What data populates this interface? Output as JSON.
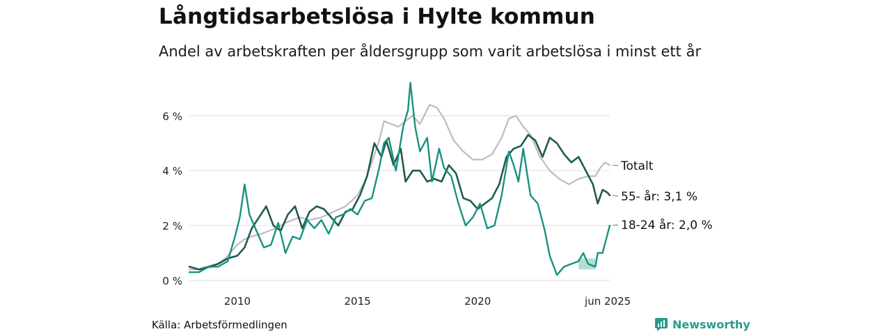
{
  "header": {
    "title": "Långtidsarbetslösa i Hylte kommun",
    "subtitle": "Andel av arbetskraften per åldersgrupp som varit arbetslösa i minst ett år"
  },
  "footer": {
    "source": "Källa: Arbetsförmedlingen",
    "brand": "Newsworthy"
  },
  "colors": {
    "totalt": "#bdb9c6",
    "age55": "#1e5b4e",
    "age18_24": "#17917f",
    "band": "#8fd0c4",
    "grid": "#dddddd"
  },
  "chart_data": {
    "type": "line",
    "title": "Långtidsarbetslösa i Hylte kommun",
    "subtitle": "Andel av arbetskraften per åldersgrupp som varit arbetslösa i minst ett år",
    "xlabel": "",
    "ylabel": "",
    "x_range": [
      "2008-01",
      "2025-06"
    ],
    "ylim": [
      0,
      7.2
    ],
    "y_ticks": [
      0,
      2,
      4,
      6
    ],
    "y_tick_labels": [
      "0 %",
      "2 %",
      "4 %",
      "6 %"
    ],
    "x_ticks": [
      2010,
      2015,
      2020,
      "2025-06"
    ],
    "x_tick_labels": [
      "2010",
      "2015",
      "2020",
      "jun 2025"
    ],
    "grid": "horizontal",
    "series_labels": [
      "Totalt",
      "55- år: 3,1 %",
      "18-24 år: 2,0 %"
    ],
    "series": [
      {
        "name": "Totalt",
        "points": [
          [
            2008.0,
            0.4
          ],
          [
            2008.5,
            0.4
          ],
          [
            2009.0,
            0.5
          ],
          [
            2009.5,
            0.8
          ],
          [
            2010.0,
            1.3
          ],
          [
            2010.3,
            1.5
          ],
          [
            2010.6,
            1.6
          ],
          [
            2011.0,
            1.7
          ],
          [
            2011.3,
            1.8
          ],
          [
            2011.6,
            1.9
          ],
          [
            2012.0,
            2.1
          ],
          [
            2012.3,
            2.2
          ],
          [
            2012.6,
            2.3
          ],
          [
            2013.0,
            2.2
          ],
          [
            2013.5,
            2.3
          ],
          [
            2014.0,
            2.5
          ],
          [
            2014.5,
            2.7
          ],
          [
            2015.0,
            3.1
          ],
          [
            2015.3,
            3.6
          ],
          [
            2015.6,
            4.3
          ],
          [
            2015.9,
            5.1
          ],
          [
            2016.1,
            5.8
          ],
          [
            2016.4,
            5.7
          ],
          [
            2016.7,
            5.6
          ],
          [
            2017.0,
            5.8
          ],
          [
            2017.3,
            6.0
          ],
          [
            2017.6,
            5.7
          ],
          [
            2018.0,
            6.4
          ],
          [
            2018.3,
            6.3
          ],
          [
            2018.6,
            5.9
          ],
          [
            2019.0,
            5.1
          ],
          [
            2019.4,
            4.7
          ],
          [
            2019.8,
            4.4
          ],
          [
            2020.2,
            4.4
          ],
          [
            2020.6,
            4.6
          ],
          [
            2021.0,
            5.2
          ],
          [
            2021.3,
            5.9
          ],
          [
            2021.6,
            6.0
          ],
          [
            2021.9,
            5.6
          ],
          [
            2022.2,
            5.3
          ],
          [
            2022.6,
            4.5
          ],
          [
            2023.0,
            4.0
          ],
          [
            2023.4,
            3.7
          ],
          [
            2023.8,
            3.5
          ],
          [
            2024.2,
            3.7
          ],
          [
            2024.6,
            3.8
          ],
          [
            2024.9,
            3.8
          ],
          [
            2025.1,
            4.1
          ],
          [
            2025.3,
            4.3
          ],
          [
            2025.5,
            4.2
          ]
        ]
      },
      {
        "name": "55- år: 3,1 %",
        "points": [
          [
            2008.0,
            0.5
          ],
          [
            2008.4,
            0.4
          ],
          [
            2008.8,
            0.5
          ],
          [
            2009.2,
            0.6
          ],
          [
            2009.6,
            0.8
          ],
          [
            2010.0,
            0.9
          ],
          [
            2010.3,
            1.2
          ],
          [
            2010.6,
            1.9
          ],
          [
            2010.9,
            2.3
          ],
          [
            2011.2,
            2.7
          ],
          [
            2011.5,
            2.0
          ],
          [
            2011.8,
            1.8
          ],
          [
            2012.1,
            2.4
          ],
          [
            2012.4,
            2.7
          ],
          [
            2012.7,
            1.9
          ],
          [
            2013.0,
            2.5
          ],
          [
            2013.3,
            2.7
          ],
          [
            2013.6,
            2.6
          ],
          [
            2013.9,
            2.3
          ],
          [
            2014.2,
            2.0
          ],
          [
            2014.5,
            2.5
          ],
          [
            2014.8,
            2.6
          ],
          [
            2015.1,
            3.1
          ],
          [
            2015.4,
            3.8
          ],
          [
            2015.7,
            5.0
          ],
          [
            2016.0,
            4.5
          ],
          [
            2016.2,
            5.1
          ],
          [
            2016.5,
            4.2
          ],
          [
            2016.8,
            4.8
          ],
          [
            2017.0,
            3.6
          ],
          [
            2017.3,
            4.0
          ],
          [
            2017.6,
            4.0
          ],
          [
            2017.9,
            3.6
          ],
          [
            2018.2,
            3.7
          ],
          [
            2018.5,
            3.6
          ],
          [
            2018.8,
            4.2
          ],
          [
            2019.1,
            3.9
          ],
          [
            2019.4,
            3.0
          ],
          [
            2019.7,
            2.9
          ],
          [
            2020.0,
            2.6
          ],
          [
            2020.3,
            2.8
          ],
          [
            2020.6,
            3.0
          ],
          [
            2020.9,
            3.5
          ],
          [
            2021.2,
            4.5
          ],
          [
            2021.5,
            4.8
          ],
          [
            2021.8,
            4.9
          ],
          [
            2022.1,
            5.3
          ],
          [
            2022.4,
            5.1
          ],
          [
            2022.7,
            4.5
          ],
          [
            2023.0,
            5.2
          ],
          [
            2023.3,
            5.0
          ],
          [
            2023.6,
            4.6
          ],
          [
            2023.9,
            4.3
          ],
          [
            2024.2,
            4.5
          ],
          [
            2024.5,
            4.0
          ],
          [
            2024.8,
            3.5
          ],
          [
            2025.0,
            2.8
          ],
          [
            2025.2,
            3.3
          ],
          [
            2025.4,
            3.2
          ],
          [
            2025.5,
            3.1
          ]
        ]
      },
      {
        "name": "18-24 år: 2,0 %",
        "points": [
          [
            2008.0,
            0.3
          ],
          [
            2008.4,
            0.3
          ],
          [
            2008.8,
            0.5
          ],
          [
            2009.2,
            0.5
          ],
          [
            2009.6,
            0.7
          ],
          [
            2009.9,
            1.6
          ],
          [
            2010.1,
            2.3
          ],
          [
            2010.3,
            3.5
          ],
          [
            2010.5,
            2.4
          ],
          [
            2010.8,
            1.8
          ],
          [
            2011.1,
            1.2
          ],
          [
            2011.4,
            1.3
          ],
          [
            2011.7,
            2.1
          ],
          [
            2012.0,
            1.0
          ],
          [
            2012.3,
            1.6
          ],
          [
            2012.6,
            1.5
          ],
          [
            2012.9,
            2.2
          ],
          [
            2013.2,
            1.9
          ],
          [
            2013.5,
            2.2
          ],
          [
            2013.8,
            1.7
          ],
          [
            2014.1,
            2.3
          ],
          [
            2014.4,
            2.4
          ],
          [
            2014.7,
            2.6
          ],
          [
            2015.0,
            2.4
          ],
          [
            2015.3,
            2.9
          ],
          [
            2015.6,
            3.0
          ],
          [
            2015.9,
            4.1
          ],
          [
            2016.1,
            5.0
          ],
          [
            2016.3,
            5.2
          ],
          [
            2016.6,
            4.0
          ],
          [
            2016.9,
            5.6
          ],
          [
            2017.1,
            6.2
          ],
          [
            2017.2,
            7.2
          ],
          [
            2017.4,
            5.6
          ],
          [
            2017.6,
            4.7
          ],
          [
            2017.9,
            5.2
          ],
          [
            2018.1,
            3.6
          ],
          [
            2018.4,
            4.8
          ],
          [
            2018.6,
            4.1
          ],
          [
            2018.9,
            3.8
          ],
          [
            2019.2,
            2.8
          ],
          [
            2019.5,
            2.0
          ],
          [
            2019.8,
            2.3
          ],
          [
            2020.1,
            2.8
          ],
          [
            2020.4,
            1.9
          ],
          [
            2020.7,
            2.0
          ],
          [
            2021.0,
            3.1
          ],
          [
            2021.3,
            4.7
          ],
          [
            2021.5,
            4.2
          ],
          [
            2021.7,
            3.6
          ],
          [
            2021.9,
            4.8
          ],
          [
            2022.2,
            3.1
          ],
          [
            2022.5,
            2.8
          ],
          [
            2022.8,
            1.8
          ],
          [
            2023.0,
            0.9
          ],
          [
            2023.3,
            0.2
          ],
          [
            2023.6,
            0.5
          ],
          [
            2023.9,
            0.6
          ],
          [
            2024.2,
            0.7
          ],
          [
            2024.4,
            1.0
          ],
          [
            2024.6,
            0.6
          ],
          [
            2024.9,
            0.5
          ],
          [
            2025.0,
            1.0
          ],
          [
            2025.2,
            1.0
          ],
          [
            2025.35,
            1.5
          ],
          [
            2025.5,
            2.0
          ]
        ]
      }
    ],
    "uncertainty_band": {
      "series": "18-24 år: 2,0 %",
      "x_range": [
        2024.2,
        2024.9
      ],
      "low": 0.4,
      "high": 0.8
    }
  }
}
